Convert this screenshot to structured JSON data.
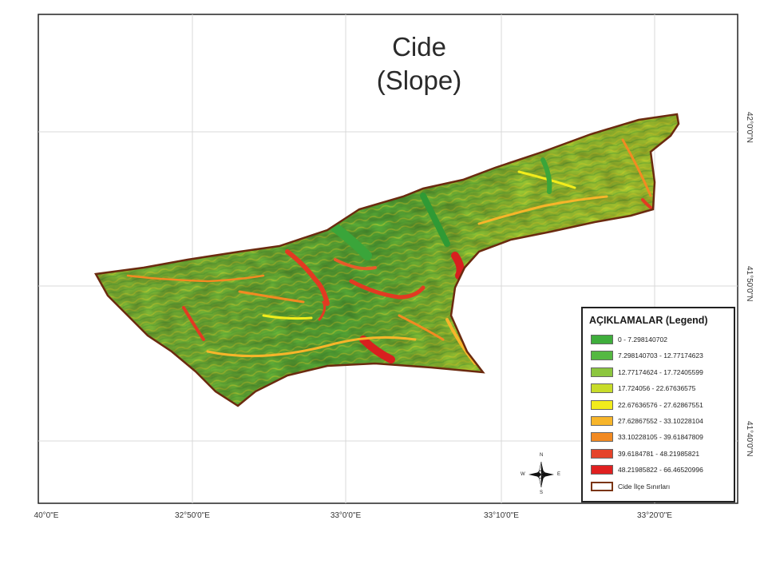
{
  "map": {
    "title_line1": "Cide",
    "title_line2": "(Slope)",
    "x_ticks": [
      "40°0\"E",
      "32°50'0\"E",
      "33°0'0\"E",
      "33°10'0\"E",
      "33°20'0\"E"
    ],
    "y_ticks": [
      "42°0'0\"N",
      "41°50'0\"N",
      "41°40'0\"N"
    ]
  },
  "legend": {
    "title": "AÇIKLAMALAR (Legend)",
    "items": [
      {
        "label": "0 - 7.298140702",
        "color": "#3fae3c"
      },
      {
        "label": "7.298140703 - 12.77174623",
        "color": "#55b842"
      },
      {
        "label": "12.77174624 - 17.72405599",
        "color": "#8cc63f"
      },
      {
        "label": "17.724056 - 22.67636575",
        "color": "#c8dc2a"
      },
      {
        "label": "22.67636576 - 27.62867551",
        "color": "#f2ec1c"
      },
      {
        "label": "27.62867552 - 33.10228104",
        "color": "#f7b52a"
      },
      {
        "label": "33.10228105 - 39.61847809",
        "color": "#f28a22"
      },
      {
        "label": "39.6184781 - 48.21985821",
        "color": "#e5432a"
      },
      {
        "label": "48.21985822 - 66.46520996",
        "color": "#e02020"
      },
      {
        "label": "Cide İlçe Sınırları",
        "color": "#ffffff",
        "border": "#7a3412"
      }
    ]
  },
  "compass": {
    "n": "N",
    "s": "S",
    "e": "E",
    "w": "W"
  },
  "colors": {
    "boundary": "#6b2a0f",
    "grid": "#d8d8d8",
    "frame": "#222222"
  }
}
